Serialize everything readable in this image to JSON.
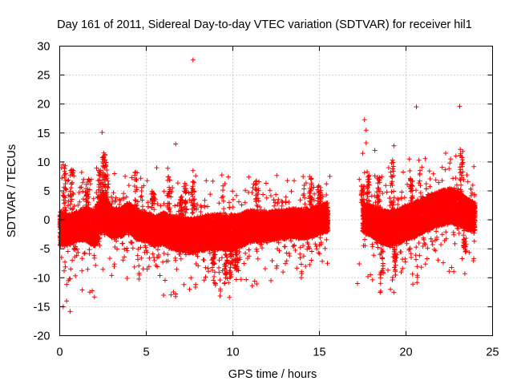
{
  "chart_data": {
    "type": "scatter",
    "title": "Day 161 of 2011, Sidereal Day-to-day VTEC variation (SDTVAR) for receiver hil1",
    "xlabel": "GPS time / hours",
    "ylabel": "SDTVAR / TECUs",
    "xlim": [
      0,
      25
    ],
    "ylim": [
      -20,
      30
    ],
    "xticks": [
      0,
      5,
      10,
      15,
      20,
      25
    ],
    "yticks": [
      -20,
      -15,
      -10,
      -5,
      0,
      5,
      10,
      15,
      20,
      25,
      30
    ],
    "grid": true,
    "marker": "+",
    "series_color": "#ff0000",
    "band_center": [
      [
        0.0,
        -1.5
      ],
      [
        0.5,
        -1.8
      ],
      [
        1.0,
        -1.0
      ],
      [
        1.5,
        -0.8
      ],
      [
        2.0,
        -1.5
      ],
      [
        2.5,
        1.5
      ],
      [
        3.0,
        -0.5
      ],
      [
        3.5,
        -0.5
      ],
      [
        4.0,
        0.5
      ],
      [
        4.5,
        -1.0
      ],
      [
        5.0,
        -1.2
      ],
      [
        5.5,
        -2.0
      ],
      [
        6.0,
        -1.5
      ],
      [
        6.5,
        -2.2
      ],
      [
        7.0,
        -2.5
      ],
      [
        7.5,
        -2.8
      ],
      [
        8.0,
        -2.5
      ],
      [
        8.5,
        -2.2
      ],
      [
        9.0,
        -2.0
      ],
      [
        9.5,
        -2.2
      ],
      [
        10.0,
        -2.2
      ],
      [
        10.5,
        -1.8
      ],
      [
        11.0,
        -1.0
      ],
      [
        11.5,
        -1.2
      ],
      [
        12.0,
        -1.2
      ],
      [
        12.5,
        -0.8
      ],
      [
        13.0,
        -0.8
      ],
      [
        13.5,
        -0.5
      ],
      [
        14.0,
        -0.8
      ],
      [
        14.5,
        -0.5
      ],
      [
        15.0,
        0.0
      ],
      [
        15.5,
        0.5
      ],
      [
        17.5,
        0.5
      ],
      [
        18.0,
        -0.2
      ],
      [
        18.5,
        -1.0
      ],
      [
        19.0,
        -1.5
      ],
      [
        19.5,
        -1.2
      ],
      [
        20.0,
        -0.5
      ],
      [
        20.5,
        0.0
      ],
      [
        21.0,
        0.8
      ],
      [
        21.5,
        1.5
      ],
      [
        22.0,
        2.0
      ],
      [
        22.5,
        2.5
      ],
      [
        23.0,
        2.0
      ],
      [
        23.5,
        1.0
      ],
      [
        24.0,
        0.5
      ]
    ],
    "band_halfwidth": [
      [
        0.0,
        3.0
      ],
      [
        1.0,
        2.5
      ],
      [
        2.5,
        3.5
      ],
      [
        3.0,
        2.5
      ],
      [
        5.0,
        2.5
      ],
      [
        7.0,
        3.0
      ],
      [
        9.0,
        3.0
      ],
      [
        10.0,
        3.0
      ],
      [
        12.0,
        2.5
      ],
      [
        15.0,
        2.5
      ],
      [
        17.5,
        2.5
      ],
      [
        19.0,
        3.0
      ],
      [
        21.0,
        3.0
      ],
      [
        23.0,
        3.0
      ],
      [
        24.0,
        2.5
      ]
    ],
    "outliers": [
      [
        7.7,
        27.6
      ],
      [
        23.1,
        19.6
      ],
      [
        20.6,
        19.5
      ],
      [
        17.6,
        17.3
      ],
      [
        17.7,
        15.5
      ],
      [
        2.45,
        15.1
      ],
      [
        6.7,
        13.1
      ],
      [
        17.7,
        13.3
      ],
      [
        19.3,
        12.8
      ],
      [
        18.2,
        12.0
      ],
      [
        17.5,
        11.5
      ],
      [
        20.2,
        10.5
      ],
      [
        0.2,
        9.5
      ],
      [
        0.1,
        9.0
      ],
      [
        5.6,
        9.0
      ],
      [
        7.7,
        8.5
      ],
      [
        19.0,
        9.0
      ],
      [
        17.3,
        7.0
      ],
      [
        15.6,
        7.5
      ],
      [
        20.8,
        8.0
      ],
      [
        2.5,
        9.2
      ],
      [
        0.3,
        -7.3
      ],
      [
        0.55,
        -10.2
      ],
      [
        0.5,
        -10.5
      ],
      [
        1.3,
        -12.1
      ],
      [
        0.4,
        -14.0
      ],
      [
        0.2,
        -15.0
      ],
      [
        0.6,
        -15.8
      ],
      [
        3.0,
        -9.6
      ],
      [
        3.9,
        -10.1
      ],
      [
        6.0,
        -13.0
      ],
      [
        6.7,
        -12.8
      ],
      [
        7.5,
        -12.0
      ],
      [
        9.0,
        -11.0
      ],
      [
        9.8,
        -13.4
      ],
      [
        10.2,
        -10.3
      ],
      [
        12.2,
        -10.5
      ],
      [
        12.9,
        -9.0
      ],
      [
        17.2,
        -11.0
      ],
      [
        17.3,
        -7.6
      ],
      [
        19.1,
        -12.0
      ],
      [
        19.3,
        -12.5
      ],
      [
        20.4,
        -11.1
      ],
      [
        23.4,
        -9.3
      ],
      [
        20.3,
        -6.5
      ],
      [
        18.5,
        -6.0
      ]
    ],
    "spike_columns": [
      [
        0.3,
        1
      ],
      [
        0.7,
        1
      ],
      [
        1.6,
        1
      ],
      [
        2.3,
        1
      ],
      [
        2.55,
        1
      ],
      [
        2.7,
        1
      ],
      [
        4.4,
        1
      ],
      [
        5.4,
        1
      ],
      [
        6.3,
        1
      ],
      [
        7.0,
        1
      ],
      [
        7.25,
        1
      ],
      [
        7.7,
        1
      ],
      [
        8.9,
        -1
      ],
      [
        9.6,
        -1
      ],
      [
        9.9,
        -1
      ],
      [
        10.2,
        -1
      ],
      [
        11.4,
        1
      ],
      [
        14.5,
        1
      ],
      [
        15.0,
        1
      ],
      [
        17.5,
        1
      ],
      [
        17.8,
        1
      ],
      [
        18.4,
        1
      ],
      [
        18.6,
        -1
      ],
      [
        19.2,
        1
      ],
      [
        19.4,
        -1
      ],
      [
        20.3,
        1
      ],
      [
        23.2,
        1
      ],
      [
        23.4,
        -1
      ]
    ]
  }
}
